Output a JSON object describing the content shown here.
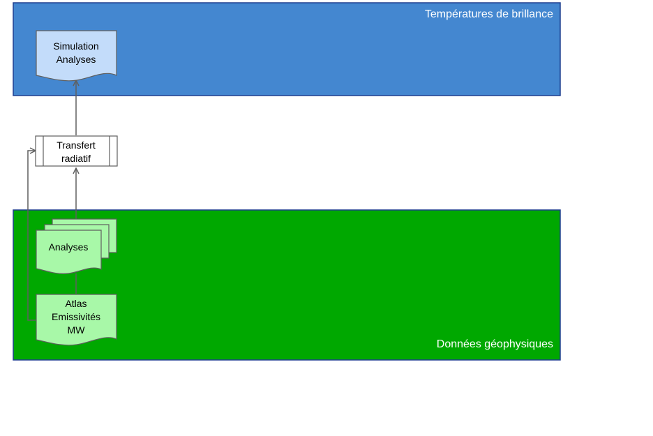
{
  "regions": {
    "brightness": {
      "label": "Températures de brillance",
      "fill": "#4487d0",
      "stroke": "#1f3f8f"
    },
    "geophysical": {
      "label": "Données géophysiques",
      "fill": "#00a800",
      "stroke": "#1f3f8f"
    }
  },
  "nodes": {
    "simulation": {
      "lines": [
        "Simulation",
        "Analyses"
      ],
      "fill": "#c3dcfa"
    },
    "transfer": {
      "lines": [
        "Transfert",
        "radiatif"
      ],
      "fill": "#ffffff"
    },
    "analyses": {
      "lines": [
        "Analyses"
      ],
      "fill": "#a8f8a8"
    },
    "atlas": {
      "lines": [
        "Atlas",
        "Emissivités",
        "MW"
      ],
      "fill": "#a8f8a8"
    }
  },
  "edge_color": "#5f5f5f"
}
